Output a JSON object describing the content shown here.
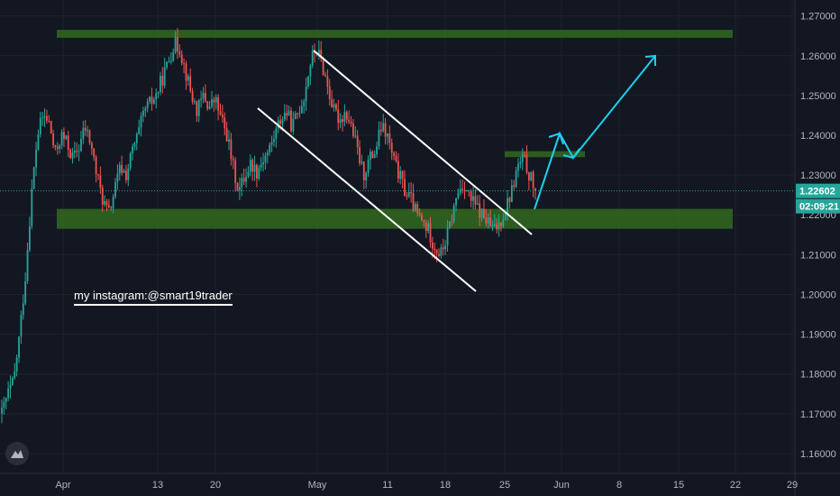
{
  "chart_data": {
    "type": "candlestick",
    "x_ticks": [
      "Apr",
      "13",
      "20",
      "May",
      "11",
      "18",
      "25",
      "Jun",
      "8",
      "15",
      "22",
      "29"
    ],
    "y_ticks": [
      "1.27000",
      "1.26000",
      "1.25000",
      "1.24000",
      "1.23000",
      "1.22000",
      "1.21000",
      "1.20000",
      "1.19000",
      "1.18000",
      "1.17000",
      "1.16000"
    ],
    "ylim": [
      1.155,
      1.274
    ],
    "current_price": "1.22602",
    "countdown": "02:09:21",
    "path": [
      1.17,
      1.175,
      1.178,
      1.19,
      1.205,
      1.225,
      1.24,
      1.245,
      1.243,
      1.235,
      1.24,
      1.238,
      1.234,
      1.237,
      1.242,
      1.238,
      1.23,
      1.224,
      1.22,
      1.226,
      1.232,
      1.23,
      1.236,
      1.24,
      1.246,
      1.248,
      1.25,
      1.254,
      1.258,
      1.263,
      1.262,
      1.256,
      1.25,
      1.246,
      1.25,
      1.247,
      1.249,
      1.244,
      1.24,
      1.232,
      1.226,
      1.23,
      1.233,
      1.231,
      1.234,
      1.236,
      1.24,
      1.244,
      1.246,
      1.242,
      1.246,
      1.25,
      1.258,
      1.262,
      1.258,
      1.252,
      1.246,
      1.244,
      1.246,
      1.242,
      1.236,
      1.23,
      1.234,
      1.236,
      1.242,
      1.24,
      1.234,
      1.23,
      1.226,
      1.224,
      1.22,
      1.218,
      1.216,
      1.212,
      1.21,
      1.214,
      1.22,
      1.226,
      1.228,
      1.224,
      1.222,
      1.22,
      1.218,
      1.216,
      1.218,
      1.222,
      1.226,
      1.232,
      1.234,
      1.23,
      1.226
    ]
  },
  "annotation": "my instagram:@smart19trader"
}
